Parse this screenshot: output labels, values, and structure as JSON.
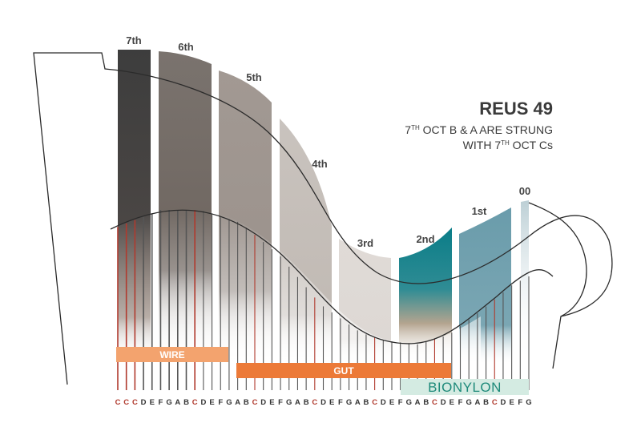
{
  "title": {
    "model": "REUS 49",
    "line1_prefix": "7",
    "line1_sup": "TH",
    "line1_rest": " OCT B & A ARE STRUNG",
    "line2_prefix": "WITH 7",
    "line2_sup": "TH",
    "line2_rest": " OCT Cs"
  },
  "octaves": [
    {
      "label": "7th",
      "color": "#3f3f3f"
    },
    {
      "label": "6th",
      "color": "#77706b"
    },
    {
      "label": "5th",
      "color": "#9a918b"
    },
    {
      "label": "4th",
      "color": "#c4beb9"
    },
    {
      "label": "3rd",
      "color": "#dcd7d3"
    },
    {
      "label": "2nd",
      "color": "#0d7f8a"
    },
    {
      "label": "1st",
      "color": "#6c9eac"
    },
    {
      "label": "00",
      "color": "#b9cdd3"
    }
  ],
  "bands": {
    "wire": {
      "label": "WIRE",
      "color": "#f3a36e"
    },
    "gut": {
      "label": "GUT",
      "color": "#ec7a38"
    },
    "bionylon": {
      "label": "BIONYLON",
      "color": "#d4ebe2",
      "text_color": "#1e8a7a"
    }
  },
  "notes": [
    "C",
    "C",
    "C",
    "D",
    "E",
    "F",
    "G",
    "A",
    "B",
    "C",
    "D",
    "E",
    "F",
    "G",
    "A",
    "B",
    "C",
    "D",
    "E",
    "F",
    "G",
    "A",
    "B",
    "C",
    "D",
    "E",
    "F",
    "G",
    "A",
    "B",
    "C",
    "D",
    "E",
    "F",
    "G",
    "A",
    "B",
    "C",
    "D",
    "E",
    "F",
    "G",
    "A",
    "B",
    "C",
    "D",
    "E",
    "F",
    "G"
  ],
  "colors": {
    "c_note": "#b03a2e",
    "other_note": "#333333",
    "outline": "#2b2b2b"
  }
}
